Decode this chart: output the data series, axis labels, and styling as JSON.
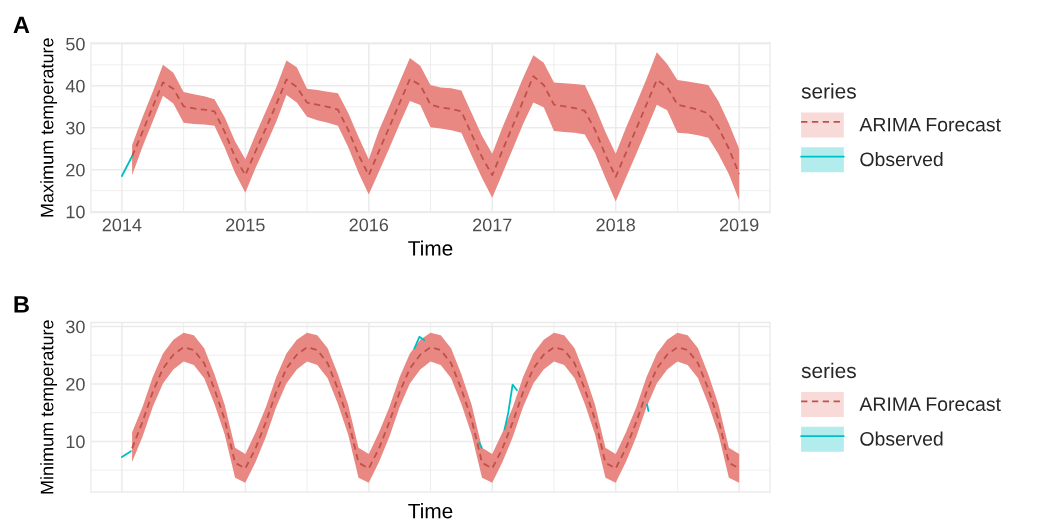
{
  "chart_data": [
    {
      "type": "line",
      "title": "A",
      "xlabel": "Time",
      "ylabel": "Maximum temperature",
      "legend_title": "series",
      "legend": "right",
      "grid": true,
      "xlim": [
        2013.75,
        2019.25
      ],
      "xticks": [
        2014,
        {
          "value": 2014.5,
          "label": null
        },
        2015,
        {
          "value": 2015.5,
          "label": null
        },
        2016,
        {
          "value": 2016.5,
          "label": null
        },
        2017,
        {
          "value": 2017.5,
          "label": null
        },
        2018,
        {
          "value": 2018.5,
          "label": null
        },
        2019
      ],
      "ylim": [
        9.8,
        50.2
      ],
      "yticks": [
        10,
        {
          "value": 15,
          "label": null
        },
        20,
        {
          "value": 25,
          "label": null
        },
        30,
        {
          "value": 35,
          "label": null
        },
        40,
        {
          "value": 45,
          "label": null
        },
        50
      ],
      "series": [
        {
          "name": "ARIMA Forecast",
          "color": "#c0504a",
          "line_style": "dashed",
          "x": [
            2014.083,
            2014.167,
            2014.25,
            2014.333,
            2014.417,
            2014.5,
            2014.583,
            2014.667,
            2014.75,
            2014.833,
            2014.917,
            2015,
            2015.083,
            2015.167,
            2015.25,
            2015.333,
            2015.417,
            2015.5,
            2015.583,
            2015.667,
            2015.75,
            2015.833,
            2015.917,
            2016,
            2016.083,
            2016.167,
            2016.25,
            2016.333,
            2016.417,
            2016.5,
            2016.583,
            2016.667,
            2016.75,
            2016.833,
            2016.917,
            2017,
            2017.083,
            2017.167,
            2017.25,
            2017.333,
            2017.417,
            2017.5,
            2017.583,
            2017.667,
            2017.75,
            2017.833,
            2017.917,
            2018,
            2018.083,
            2018.167,
            2018.25,
            2018.333,
            2018.417,
            2018.5,
            2018.583,
            2018.667,
            2018.75,
            2018.833,
            2018.917,
            2019
          ],
          "values": [
            23.2,
            29.0,
            35.0,
            40.8,
            39.3,
            35.1,
            34.6,
            34.3,
            33.9,
            29.0,
            23.0,
            18.7,
            24.4,
            29.9,
            35.5,
            41.5,
            39.7,
            36.0,
            35.5,
            35.0,
            34.3,
            29.5,
            23.5,
            18.7,
            24.5,
            30.2,
            35.9,
            41.6,
            40.2,
            35.5,
            34.8,
            34.5,
            33.9,
            28.5,
            23.0,
            18.7,
            24.6,
            30.5,
            36.4,
            42.3,
            40.2,
            35.5,
            35.1,
            34.7,
            34.0,
            29.5,
            23.5,
            18.3,
            24.0,
            29.8,
            35.6,
            41.4,
            39.7,
            35.5,
            34.9,
            34.3,
            33.4,
            30.0,
            25.0,
            19.0
          ],
          "upper": [
            25.9,
            32.5,
            38.6,
            45.0,
            43.1,
            38.5,
            38.0,
            37.5,
            36.8,
            32.5,
            26.8,
            22.5,
            28.4,
            34.0,
            39.6,
            46.0,
            44.4,
            39.3,
            39.0,
            38.6,
            38.2,
            33.6,
            27.8,
            22.5,
            29.4,
            35.1,
            40.9,
            46.6,
            44.8,
            40.2,
            39.6,
            39.4,
            38.9,
            33.5,
            28.1,
            23.8,
            30.1,
            36.0,
            41.9,
            47.3,
            45.5,
            40.8,
            40.6,
            40.4,
            40.2,
            35.0,
            29.0,
            23.8,
            30.0,
            35.8,
            41.7,
            48.0,
            45.2,
            41.4,
            41.0,
            40.6,
            40.2,
            36.3,
            31.0,
            25.0
          ],
          "lower": [
            18.7,
            25.5,
            31.5,
            37.6,
            35.8,
            31.2,
            30.9,
            30.8,
            30.5,
            25.3,
            19.2,
            14.5,
            20.4,
            25.8,
            31.4,
            37.8,
            36.0,
            32.6,
            31.8,
            31.2,
            30.5,
            25.4,
            19.3,
            14.1,
            19.6,
            25.2,
            30.9,
            36.4,
            35.4,
            30.1,
            29.8,
            29.4,
            28.8,
            23.4,
            18.0,
            13.3,
            19.1,
            25.0,
            30.9,
            36.0,
            34.9,
            29.2,
            29.0,
            28.8,
            28.4,
            24.0,
            18.0,
            12.4,
            18.1,
            23.8,
            29.6,
            35.5,
            34.2,
            28.8,
            28.6,
            28.2,
            27.6,
            23.7,
            18.9,
            12.7
          ]
        },
        {
          "name": "Observed",
          "color": "#00bfc4",
          "line_style": "solid",
          "x": [
            2014,
            2014.083
          ],
          "values": [
            18.5,
            23.2
          ]
        }
      ]
    },
    {
      "type": "line",
      "title": "B",
      "xlabel": "Time",
      "ylabel": "Minimum temperature",
      "legend_title": "series",
      "legend": "right",
      "grid": true,
      "tick_labels": "y",
      "xlim": [
        2013.75,
        2019.25
      ],
      "xticks": [
        2014,
        {
          "value": 2014.5,
          "label": null
        },
        2015,
        {
          "value": 2015.5,
          "label": null
        },
        2016,
        {
          "value": 2016.5,
          "label": null
        },
        2017,
        {
          "value": 2017.5,
          "label": null
        },
        2018,
        {
          "value": 2018.5,
          "label": null
        },
        2019
      ],
      "ylim": [
        1.2,
        30.7
      ],
      "yticks": [
        {
          "value": 5,
          "label": null
        },
        10,
        {
          "value": 15,
          "label": null
        },
        20,
        {
          "value": 25,
          "label": null
        },
        30
      ],
      "series": [
        {
          "name": "ARIMA Forecast",
          "color": "#c0504a",
          "line_style": "dashed",
          "x": [
            2014.083,
            2014.167,
            2014.25,
            2014.333,
            2014.417,
            2014.5,
            2014.583,
            2014.667,
            2014.75,
            2014.833,
            2014.917,
            2015,
            2015.083,
            2015.167,
            2015.25,
            2015.333,
            2015.417,
            2015.5,
            2015.583,
            2015.667,
            2015.75,
            2015.833,
            2015.917,
            2016,
            2016.083,
            2016.167,
            2016.25,
            2016.333,
            2016.417,
            2016.5,
            2016.583,
            2016.667,
            2016.75,
            2016.833,
            2016.917,
            2017,
            2017.083,
            2017.167,
            2017.25,
            2017.333,
            2017.417,
            2017.5,
            2017.583,
            2017.667,
            2017.75,
            2017.833,
            2017.917,
            2018,
            2018.083,
            2018.167,
            2018.25,
            2018.333,
            2018.417,
            2018.5,
            2018.583,
            2018.667,
            2018.75,
            2018.833,
            2018.917,
            2019
          ],
          "values": [
            8.8,
            13.4,
            18.6,
            22.7,
            25.1,
            26.4,
            25.9,
            23.6,
            19.1,
            13.8,
            6.3,
            5.3,
            8.8,
            13.4,
            18.6,
            22.7,
            25.1,
            26.4,
            25.9,
            23.6,
            19.1,
            13.8,
            6.3,
            5.3,
            8.8,
            13.4,
            18.6,
            22.7,
            25.1,
            26.4,
            25.9,
            23.6,
            19.1,
            13.8,
            6.3,
            5.3,
            8.8,
            13.4,
            18.6,
            22.7,
            25.1,
            26.4,
            25.9,
            23.6,
            19.1,
            13.8,
            6.3,
            5.3,
            8.8,
            13.4,
            18.6,
            22.7,
            25.1,
            26.4,
            25.9,
            23.6,
            19.1,
            13.8,
            6.3,
            5.3
          ],
          "upper": [
            11.6,
            16.0,
            21.2,
            25.3,
            27.7,
            28.9,
            28.5,
            26.2,
            21.7,
            16.4,
            8.9,
            7.8,
            11.6,
            16.0,
            21.2,
            25.3,
            27.7,
            28.9,
            28.5,
            26.2,
            21.7,
            16.4,
            8.9,
            7.8,
            11.6,
            16.0,
            21.2,
            25.3,
            27.7,
            28.9,
            28.5,
            26.2,
            21.7,
            16.4,
            8.9,
            7.8,
            11.6,
            16.0,
            21.2,
            25.3,
            27.7,
            28.9,
            28.5,
            26.2,
            21.7,
            16.4,
            8.9,
            7.8,
            11.6,
            16.0,
            21.2,
            25.3,
            27.7,
            28.9,
            28.5,
            26.2,
            21.7,
            16.4,
            8.9,
            7.8
          ],
          "lower": [
            6.4,
            10.8,
            16.0,
            20.1,
            22.5,
            23.9,
            23.3,
            21.0,
            16.5,
            11.2,
            3.7,
            2.8,
            6.4,
            10.8,
            16.0,
            20.1,
            22.5,
            23.9,
            23.3,
            21.0,
            16.5,
            11.2,
            3.7,
            2.8,
            6.4,
            10.8,
            16.0,
            20.1,
            22.5,
            23.9,
            23.3,
            21.0,
            16.5,
            11.2,
            3.7,
            2.8,
            6.4,
            10.8,
            16.0,
            20.1,
            22.5,
            23.9,
            23.3,
            21.0,
            16.5,
            11.2,
            3.7,
            2.8,
            6.4,
            10.8,
            16.0,
            20.1,
            22.5,
            23.9,
            23.3,
            21.0,
            16.5,
            11.2,
            3.7,
            2.8
          ]
        },
        {
          "name": "Observed",
          "color": "#00bfc4",
          "line_style": "solid",
          "x": [
            2014,
            2014.073,
            2015.2,
            2016.37,
            2016.41,
            2016.45,
            2016.6,
            2016.895,
            2016.915,
            2017.0,
            2017.1,
            2017.13,
            2017.165,
            2017.2,
            2017.7,
            2018.255,
            2018.265
          ],
          "values": [
            7.3,
            8.3,
            null,
            26.2,
            28.2,
            27.6,
            null,
            9.8,
            8.9,
            null,
            12.1,
            15.0,
            19.9,
            18.9,
            null,
            16.4,
            15.3
          ]
        }
      ]
    }
  ]
}
